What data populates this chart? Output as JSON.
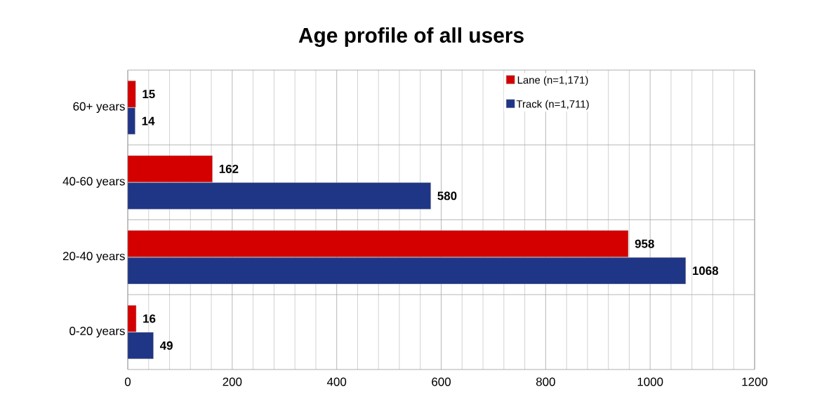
{
  "chart_data": {
    "type": "bar",
    "orientation": "horizontal",
    "title": "Age profile of all users",
    "categories": [
      "60+ years",
      "40-60 years",
      "20-40 years",
      "0-20 years"
    ],
    "series": [
      {
        "name": "Lane (n=1,171)",
        "color": "#d40000",
        "values": [
          15,
          162,
          958,
          16
        ]
      },
      {
        "name": "Track (n=1,711)",
        "color": "#1f3585",
        "values": [
          14,
          580,
          1068,
          49
        ]
      }
    ],
    "xlim": [
      0,
      1200
    ],
    "xticks": [
      0,
      200,
      400,
      600,
      800,
      1000,
      1200
    ],
    "grid": true,
    "legend": "top right",
    "data_labels": true
  }
}
